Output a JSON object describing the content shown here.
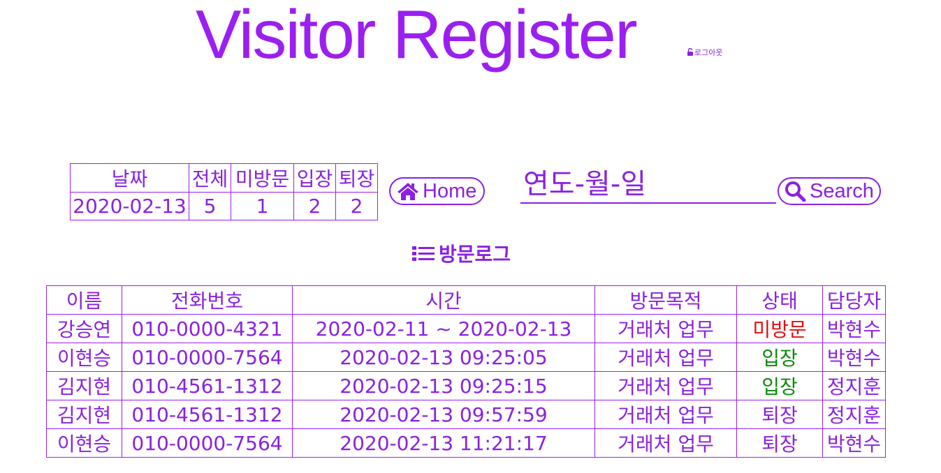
{
  "header": {
    "title": "Visitor Register",
    "logout_label": "로그아웃"
  },
  "summary": {
    "headers": [
      "날짜",
      "전체",
      "미방문",
      "입장",
      "퇴장"
    ],
    "values": [
      "2020-02-13",
      "5",
      "1",
      "2",
      "2"
    ]
  },
  "nav": {
    "home_label": "Home",
    "search_label": "Search",
    "date_placeholder": "연도-월-일"
  },
  "log": {
    "heading": "방문로그",
    "headers": [
      "이름",
      "전화번호",
      "시간",
      "방문목적",
      "상태",
      "담당자"
    ],
    "rows": [
      {
        "name": "강승연",
        "phone": "010-0000-4321",
        "time": "2020-02-11 ~ 2020-02-13",
        "purpose": "거래처 업무",
        "status": "미방문",
        "manager": "박현수"
      },
      {
        "name": "이현승",
        "phone": "010-0000-7564",
        "time": "2020-02-13 09:25:05",
        "purpose": "거래처 업무",
        "status": "입장",
        "manager": "박현수"
      },
      {
        "name": "김지현",
        "phone": "010-4561-1312",
        "time": "2020-02-13 09:25:15",
        "purpose": "거래처 업무",
        "status": "입장",
        "manager": "정지훈"
      },
      {
        "name": "김지현",
        "phone": "010-4561-1312",
        "time": "2020-02-13 09:57:59",
        "purpose": "거래처 업무",
        "status": "퇴장",
        "manager": "정지훈"
      },
      {
        "name": "이현승",
        "phone": "010-0000-7564",
        "time": "2020-02-13 11:21:17",
        "purpose": "거래처 업무",
        "status": "퇴장",
        "manager": "박현수"
      }
    ]
  },
  "colors": {
    "accent": "#8a21e0",
    "status_missed": "#e01010",
    "status_in": "#0a8a0a",
    "status_out": "#8a21e0"
  },
  "icons": {
    "logout": "unlock-icon",
    "home": "home-icon",
    "search": "search-icon",
    "log": "list-icon"
  }
}
